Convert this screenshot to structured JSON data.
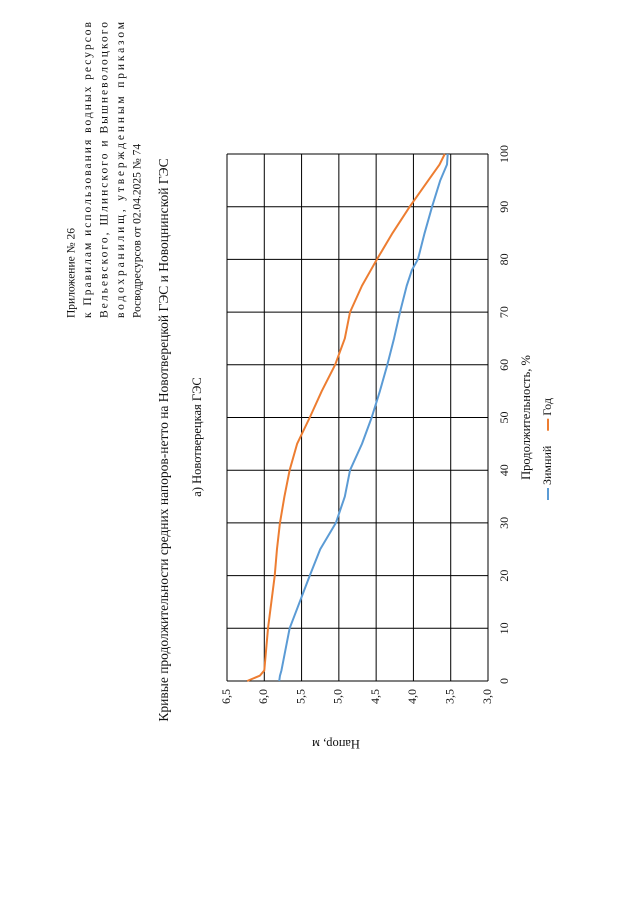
{
  "header": {
    "lines": [
      "Приложение № 26",
      "к Правилам использования водных ресурсов",
      "Вельевского, Шлинского и Вышневолоцкого",
      "водохранилищ, утвержденным приказом",
      "Росводресурсов от 02.04.2025 № 74"
    ]
  },
  "document_title": "Кривые продолжительности средних напоров-нетто на Новотверецкой ГЭС и Новоцнинской ГЭС",
  "chart_data": {
    "type": "line",
    "title": "а) Новотверецкая ГЭС",
    "x_label": "Продолжительность, %",
    "y_label": "Напор, м",
    "x": [
      0,
      1,
      2,
      10,
      20,
      25,
      30,
      35,
      40,
      45,
      50,
      55,
      60,
      65,
      70,
      75,
      78,
      80,
      85,
      90,
      95,
      98,
      100
    ],
    "series": [
      {
        "name": "Зимний",
        "color": "#5b9bd5",
        "values": [
          5.8,
          5.79,
          5.77,
          5.66,
          5.39,
          5.25,
          5.04,
          4.92,
          4.85,
          4.69,
          4.56,
          4.45,
          4.35,
          4.26,
          4.18,
          4.09,
          4.02,
          3.94,
          3.85,
          3.75,
          3.64,
          3.55,
          3.54
        ]
      },
      {
        "name": "Год",
        "color": "#ed7d31",
        "values": [
          6.23,
          6.06,
          6.0,
          5.95,
          5.86,
          5.83,
          5.79,
          5.73,
          5.66,
          5.56,
          5.39,
          5.23,
          5.05,
          4.92,
          4.85,
          4.69,
          4.57,
          4.49,
          4.28,
          4.05,
          3.8,
          3.65,
          3.58
        ]
      }
    ],
    "xlim": [
      0,
      100
    ],
    "xticks": [
      0,
      10,
      20,
      30,
      40,
      50,
      60,
      70,
      80,
      90,
      100
    ],
    "ylim": [
      3,
      6.5
    ],
    "yticks": [
      {
        "value": 3,
        "label": "3,0"
      },
      {
        "value": 3.5,
        "label": "3,5"
      },
      {
        "value": 4,
        "label": "4,0"
      },
      {
        "value": 4.5,
        "label": "4,5"
      },
      {
        "value": 5,
        "label": "5,0"
      },
      {
        "value": 5.5,
        "label": "5,5"
      },
      {
        "value": 6,
        "label": "6,0"
      },
      {
        "value": 6.5,
        "label": "6,5"
      }
    ],
    "grid": true,
    "legend": "bottom"
  }
}
